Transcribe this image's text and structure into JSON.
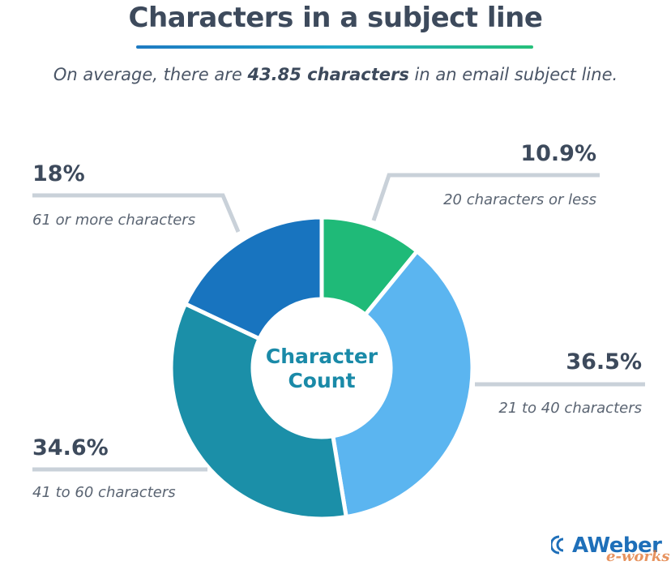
{
  "title": "Characters in a subject line",
  "subtitle": {
    "prefix": "On average, there are ",
    "highlight": "43.85 characters",
    "suffix": " in an email subject line."
  },
  "center_label": [
    "Character",
    "Count"
  ],
  "brand": "AWeber",
  "watermark": "e-works",
  "colors": {
    "title": "#3d4a5c",
    "center_text": "#1a8aa8",
    "leader": "#c9d1d9",
    "label_value": "#3d4a5c",
    "label_desc": "#5a6472"
  },
  "chart_data": {
    "type": "pie",
    "donut": true,
    "title": "Characters in a subject line",
    "slices": [
      {
        "label": "20 characters or less",
        "value": 10.9,
        "display": "10.9%",
        "color": "#1fba78"
      },
      {
        "label": "21 to 40 characters",
        "value": 36.5,
        "display": "36.5%",
        "color": "#5bb5f0"
      },
      {
        "label": "41 to 60 characters",
        "value": 34.6,
        "display": "34.6%",
        "color": "#1b8fa8"
      },
      {
        "label": "61 or more characters",
        "value": 18.0,
        "display": "18%",
        "color": "#1874bf"
      }
    ]
  }
}
